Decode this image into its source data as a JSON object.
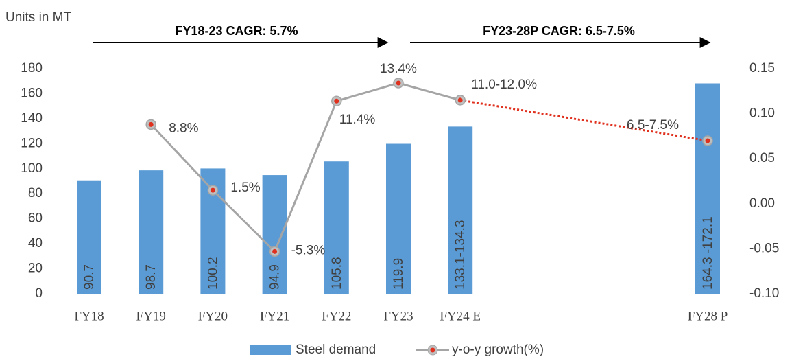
{
  "chart_data": {
    "type": "bar_line",
    "annotations": [
      "Units in MT",
      "FY18-23 CAGR: 5.7%",
      "FY23-28P CAGR: 6.5-7.5%"
    ],
    "categories": [
      "FY18",
      "FY19",
      "FY20",
      "FY21",
      "FY22",
      "FY23",
      "FY24 E",
      null,
      null,
      null,
      "FY28 P"
    ],
    "series": [
      {
        "name": "Steel demand",
        "type": "bar",
        "color": "#5b9bd5",
        "values": [
          90.7,
          98.7,
          100.2,
          94.9,
          105.8,
          119.9,
          133.7,
          null,
          null,
          null,
          168.2
        ],
        "value_labels": [
          "90.7",
          "98.7",
          "100.2",
          "94.9",
          "105.8",
          "119.9",
          "133.1-134.3",
          null,
          null,
          null,
          "164.3 -172.1"
        ]
      },
      {
        "name": "y-o-y growth(%)",
        "type": "line",
        "axis": "y2",
        "color": "#a5a5a5",
        "marker_color": "#e0301e",
        "gap_color": "#e0301e",
        "values": [
          null,
          0.088,
          0.015,
          -0.053,
          0.114,
          0.134,
          0.115,
          null,
          null,
          null,
          0.07
        ],
        "value_labels": [
          null,
          "8.8%",
          "1.5%",
          "-5.3%",
          "11.4%",
          "13.4%",
          "11.0-12.0%",
          null,
          null,
          null,
          "6.5-7.5%"
        ]
      }
    ],
    "ylim": [
      0,
      180
    ],
    "yticks": [
      0,
      20,
      40,
      60,
      80,
      100,
      120,
      140,
      160,
      180
    ],
    "y2lim": [
      -0.1,
      0.15
    ],
    "y2ticks": [
      {
        "value": -0.1,
        "label": "-0.10"
      },
      {
        "value": -0.05,
        "label": "-0.05"
      },
      {
        "value": 0,
        "label": "0.00"
      },
      {
        "value": 0.05,
        "label": "0.05"
      },
      {
        "value": 0.1,
        "label": "0.10"
      },
      {
        "value": 0.15,
        "label": "0.15"
      }
    ],
    "grid": false,
    "legend": "bottom"
  }
}
